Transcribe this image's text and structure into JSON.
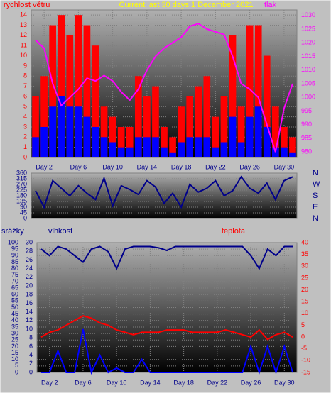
{
  "chart_data": [
    {
      "type": "bar",
      "title": "Current last 30 days 1 December 2021",
      "y_label": "rychlost větru",
      "y2_label": "tlak",
      "x": [
        1,
        2,
        3,
        4,
        5,
        6,
        7,
        8,
        9,
        10,
        11,
        12,
        13,
        14,
        15,
        16,
        17,
        18,
        19,
        20,
        21,
        22,
        23,
        24,
        25,
        26,
        27,
        28,
        29,
        30,
        31
      ],
      "xlim": [
        0.5,
        31.5
      ],
      "xticks": [
        {
          "value": 2,
          "label": "Day 2"
        },
        {
          "value": 6,
          "label": "Day 6"
        },
        {
          "value": 10,
          "label": "Day 10"
        },
        {
          "value": 14,
          "label": "Day 14"
        },
        {
          "value": 18,
          "label": "Day 18"
        },
        {
          "value": 22,
          "label": "Day 22"
        },
        {
          "value": 26,
          "label": "Day 26"
        },
        {
          "value": 30,
          "label": "Day 30"
        }
      ],
      "ylim": [
        0,
        14.5
      ],
      "yticks": [
        0,
        1,
        2,
        3,
        4,
        5,
        6,
        7,
        8,
        9,
        10,
        11,
        12,
        13,
        14
      ],
      "y2lim": [
        978,
        1032
      ],
      "y2ticks": [
        980,
        985,
        990,
        995,
        1000,
        1005,
        1010,
        1015,
        1020,
        1025,
        1030
      ],
      "grid": true,
      "series": [
        {
          "name": "rychlost větru",
          "type": "bar",
          "color": "#ff0000",
          "values": [
            6,
            8,
            13,
            14,
            12,
            14,
            13,
            11,
            5,
            4,
            3,
            3,
            8,
            6,
            7,
            3,
            2,
            5,
            6,
            7,
            8,
            4,
            6,
            12,
            5,
            13,
            13,
            10,
            5,
            3,
            2
          ]
        },
        {
          "type": "bar",
          "color": "#0000ff",
          "values": [
            2,
            3,
            5,
            6,
            5,
            5,
            4,
            3,
            2,
            1.5,
            1,
            1,
            2,
            2,
            2,
            1,
            0.5,
            1.5,
            2,
            2,
            2,
            1,
            1.5,
            4,
            1.5,
            4,
            5,
            3,
            1,
            1,
            0.5
          ]
        },
        {
          "name": "tlak",
          "type": "line",
          "axis": "y2",
          "color": "#ff00ff",
          "values": [
            1021,
            1018,
            1005,
            997,
            1000,
            1003,
            1007,
            1006,
            1008,
            1006,
            1002,
            999,
            1003,
            1010,
            1015,
            1018,
            1020,
            1022,
            1026,
            1027,
            1025,
            1024,
            1023,
            1015,
            1005,
            1003,
            1000,
            990,
            980,
            996,
            1005
          ]
        }
      ]
    },
    {
      "type": "line",
      "compass_labels": [
        "N",
        "W",
        "S",
        "E",
        "N"
      ],
      "x": [
        1,
        2,
        3,
        4,
        5,
        6,
        7,
        8,
        9,
        10,
        11,
        12,
        13,
        14,
        15,
        16,
        17,
        18,
        19,
        20,
        21,
        22,
        23,
        24,
        25,
        26,
        27,
        28,
        29,
        30,
        31
      ],
      "xlim": [
        0.5,
        31.5
      ],
      "ylim": [
        0,
        360
      ],
      "yticks": [
        0,
        45,
        90,
        135,
        180,
        225,
        270,
        315,
        360
      ],
      "grid": true,
      "series": [
        {
          "type": "line",
          "color": "#00008b",
          "values": [
            220,
            90,
            300,
            240,
            180,
            260,
            200,
            150,
            320,
            100,
            260,
            230,
            190,
            300,
            250,
            120,
            200,
            90,
            270,
            210,
            240,
            300,
            180,
            220,
            330,
            240,
            200,
            280,
            150,
            300,
            330
          ]
        }
      ]
    },
    {
      "type": "line",
      "y3_label": "srážky",
      "y_label": "vlhkost",
      "y2_label": "teplota",
      "x": [
        1,
        2,
        3,
        4,
        5,
        6,
        7,
        8,
        9,
        10,
        11,
        12,
        13,
        14,
        15,
        16,
        17,
        18,
        19,
        20,
        21,
        22,
        23,
        24,
        25,
        26,
        27,
        28,
        29,
        30,
        31
      ],
      "xlim": [
        0.5,
        31.5
      ],
      "xticks": [
        {
          "value": 2,
          "label": "Day 2"
        },
        {
          "value": 6,
          "label": "Day 6"
        },
        {
          "value": 10,
          "label": "Day 10"
        },
        {
          "value": 14,
          "label": "Day 14"
        },
        {
          "value": 18,
          "label": "Day 18"
        },
        {
          "value": 22,
          "label": "Day 22"
        },
        {
          "value": 26,
          "label": "Day 26"
        },
        {
          "value": 30,
          "label": "Day 30"
        }
      ],
      "ylim": [
        0,
        100
      ],
      "yticks": [
        0,
        5,
        10,
        15,
        20,
        25,
        30,
        35,
        40,
        45,
        50,
        55,
        60,
        65,
        70,
        75,
        80,
        85,
        90,
        95,
        100
      ],
      "y3lim": [
        0,
        30
      ],
      "y3ticks": [
        0,
        2,
        4,
        6,
        8,
        10,
        12,
        14,
        16,
        18,
        20,
        22,
        24,
        26,
        28,
        30
      ],
      "y2lim": [
        -15,
        40
      ],
      "y2ticks": [
        -15,
        -10,
        -5,
        0,
        5,
        10,
        15,
        20,
        25,
        30,
        35,
        40
      ],
      "grid": true,
      "series": [
        {
          "name": "vlhkost",
          "type": "line",
          "color": "#00008b",
          "values": [
            95,
            90,
            97,
            95,
            90,
            85,
            95,
            97,
            93,
            80,
            95,
            97,
            97,
            97,
            96,
            94,
            97,
            97,
            97,
            97,
            97,
            97,
            97,
            97,
            97,
            90,
            80,
            95,
            90,
            97,
            97
          ]
        },
        {
          "name": "teplota",
          "type": "line",
          "axis": "y2",
          "color": "#ff0000",
          "values": [
            0,
            2,
            3,
            5,
            7,
            9,
            8,
            6,
            5,
            3,
            2,
            1,
            2,
            2,
            2,
            3,
            3,
            3,
            2,
            2,
            2,
            2,
            3,
            2,
            1,
            0,
            3,
            -1,
            1,
            2,
            0
          ]
        },
        {
          "name": "srážky",
          "type": "line",
          "axis": "y3",
          "color": "#0000ff",
          "values": [
            0,
            0,
            5,
            0,
            0,
            10,
            0,
            4,
            0,
            1,
            0,
            0,
            3,
            0,
            0,
            0,
            0,
            0,
            0,
            0,
            0,
            0,
            0,
            0,
            0,
            6,
            0,
            6,
            0,
            6,
            0
          ]
        }
      ]
    }
  ]
}
